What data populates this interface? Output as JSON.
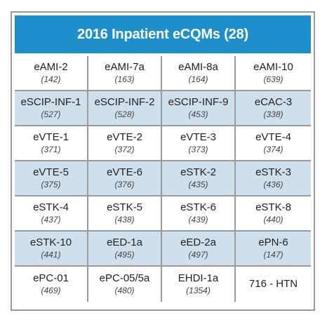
{
  "header": {
    "title": "2016 Inpatient eCQMs (28)"
  },
  "rows": [
    {
      "shaded": false,
      "cells": [
        {
          "name": "eAMI-2",
          "id": "(142)"
        },
        {
          "name": "eAMI-7a",
          "id": "(163)"
        },
        {
          "name": "eAMI-8a",
          "id": "(164)"
        },
        {
          "name": "eAMI-10",
          "id": "(639)"
        }
      ]
    },
    {
      "shaded": true,
      "cells": [
        {
          "name": "eSCIP-INF-1",
          "id": "(527)"
        },
        {
          "name": "eSCIP-INF-2",
          "id": "(528)"
        },
        {
          "name": "eSCIP-INF-9",
          "id": "(453)"
        },
        {
          "name": "eCAC-3",
          "id": "(338)"
        }
      ]
    },
    {
      "shaded": false,
      "cells": [
        {
          "name": "eVTE-1",
          "id": "(371)"
        },
        {
          "name": "eVTE-2",
          "id": "(372)"
        },
        {
          "name": "eVTE-3",
          "id": "(373)"
        },
        {
          "name": "eVTE-4",
          "id": "(374)"
        }
      ]
    },
    {
      "shaded": true,
      "cells": [
        {
          "name": "eVTE-5",
          "id": "(375)"
        },
        {
          "name": "eVTE-6",
          "id": "(376)"
        },
        {
          "name": "eSTK-2",
          "id": "(435)"
        },
        {
          "name": "eSTK-3",
          "id": "(436)"
        }
      ]
    },
    {
      "shaded": false,
      "cells": [
        {
          "name": "eSTK-4",
          "id": "(437)"
        },
        {
          "name": "eSTK-5",
          "id": "(438)"
        },
        {
          "name": "eSTK-6",
          "id": "(439)"
        },
        {
          "name": "eSTK-8",
          "id": "(440)"
        }
      ]
    },
    {
      "shaded": true,
      "cells": [
        {
          "name": "eSTK-10",
          "id": "(441)"
        },
        {
          "name": "eED-1a",
          "id": "(495)"
        },
        {
          "name": "eED-2a",
          "id": "(497)"
        },
        {
          "name": "ePN-6",
          "id": "(147)"
        }
      ]
    },
    {
      "shaded": false,
      "cells": [
        {
          "name": "ePC-01",
          "id": "(469)"
        },
        {
          "name": "ePC-05/5a",
          "id": "(480)"
        },
        {
          "name": "EHDI-1a",
          "id": "(1354)"
        },
        {
          "name": "716 - HTN",
          "id": ""
        }
      ]
    }
  ],
  "colors": {
    "header_bg": "#1e8fca",
    "shaded_row_bg": "#cfdfec",
    "border": "#9a9a9a"
  }
}
